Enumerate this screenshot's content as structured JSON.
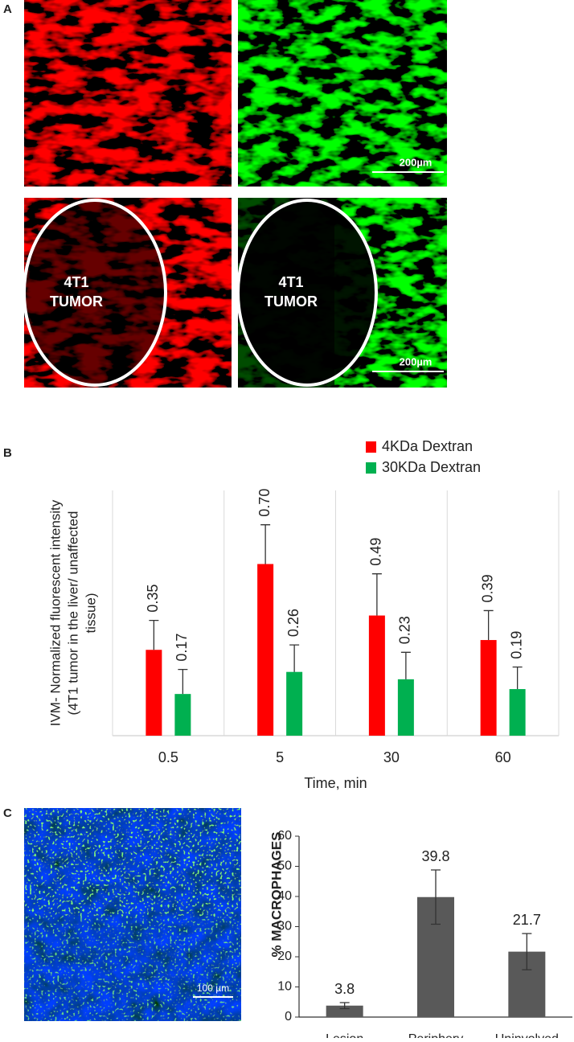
{
  "panel_labels": [
    "A",
    "B",
    "C"
  ],
  "panel_a": {
    "top_right_scale_bar": "200µm",
    "bottom_left_label": [
      "4T1",
      "TUMOR"
    ],
    "bottom_right_label": [
      "4T1",
      "TUMOR"
    ],
    "bottom_right_scale_bar": "200µm"
  },
  "panel_c_image": {
    "scale_bar": "100 µm"
  },
  "chart_data": [
    {
      "type": "bar",
      "xlabel": "Time, min",
      "ylabel": [
        "IVM- Normalized fluorescent intensity",
        "(4T1 tumor in the liver/ unaffected",
        "tissue)"
      ],
      "categories": [
        "0.5",
        "5",
        "30",
        "60"
      ],
      "series": [
        {
          "name": "4KDa Dextran",
          "color": "#ff0000",
          "values": [
            0.35,
            0.7,
            0.49,
            0.39
          ],
          "value_labels": [
            "0.35",
            "0.70",
            "0.49",
            "0.39"
          ],
          "errors": [
            0.12,
            0.16,
            0.17,
            0.12
          ]
        },
        {
          "name": "30KDa Dextran",
          "color": "#00b050",
          "values": [
            0.17,
            0.26,
            0.23,
            0.19
          ],
          "value_labels": [
            "0.17",
            "0.26",
            "0.23",
            "0.19"
          ],
          "errors": [
            0.1,
            0.11,
            0.11,
            0.09
          ]
        }
      ],
      "ylim": [
        0,
        1
      ],
      "legend": "upper right",
      "category_dividers": true,
      "error_direction": "up"
    },
    {
      "type": "bar",
      "ylabel": "% MACROPHAGES",
      "categories": [
        "Lesion",
        "Periphery",
        "Uninvolved"
      ],
      "series": [
        {
          "color": "#595959",
          "values": [
            3.8,
            39.8,
            21.7
          ],
          "errors": [
            1,
            9,
            6
          ]
        }
      ],
      "ylim": [
        0,
        60
      ],
      "yticks": [
        0,
        10,
        20,
        30,
        40,
        50,
        60
      ],
      "error_direction": "both"
    }
  ]
}
